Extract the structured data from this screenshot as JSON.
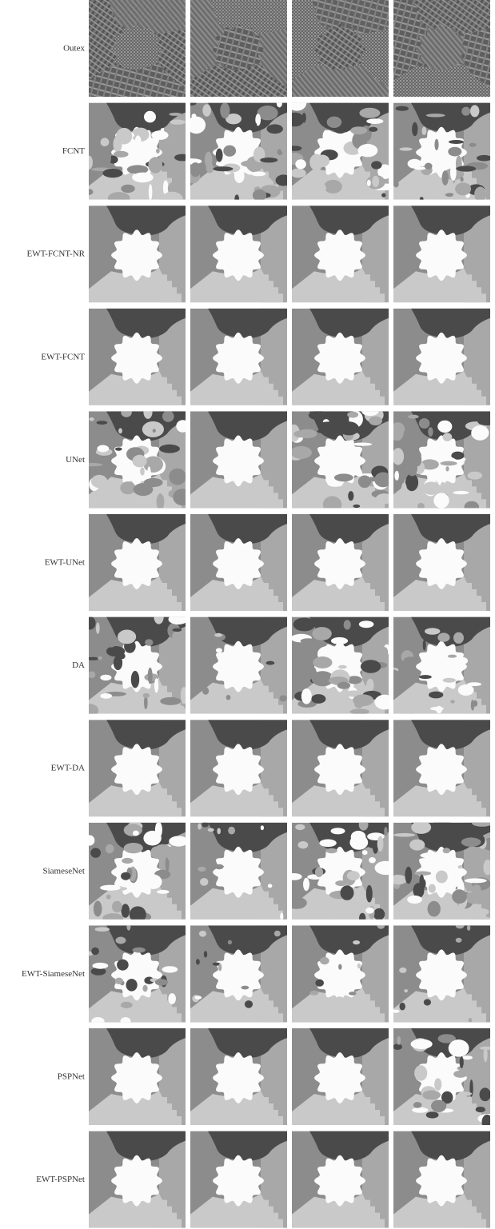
{
  "rows": [
    {
      "label": "Outex"
    },
    {
      "label": "FCNT"
    },
    {
      "label": "EWT-FCNT-NR"
    },
    {
      "label": "EWT-FCNT"
    },
    {
      "label": "UNet"
    },
    {
      "label": "EWT-UNet"
    },
    {
      "label": "DA"
    },
    {
      "label": "EWT-DA"
    },
    {
      "label": "SiameseNet"
    },
    {
      "label": "EWT-SiameseNet"
    },
    {
      "label": "PSPNet"
    },
    {
      "label": "EWT-PSPNet"
    }
  ]
}
